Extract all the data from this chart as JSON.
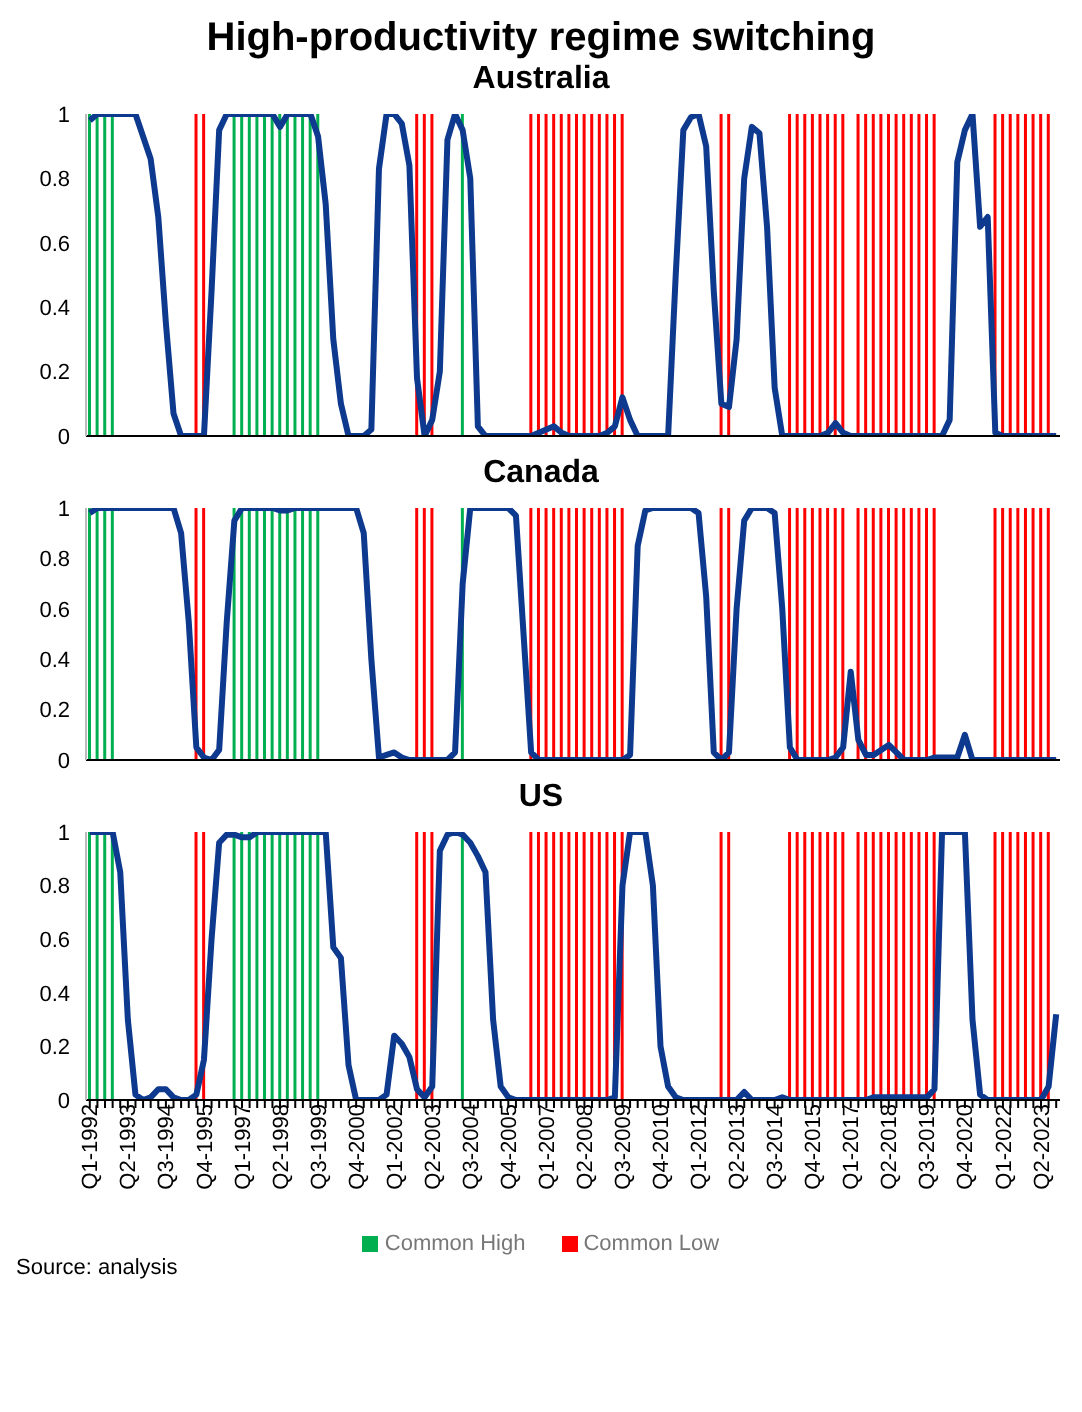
{
  "chart_data": [
    {
      "type": "line",
      "title": "High-productivity regime switching",
      "subtitle": "Australia",
      "ylim": [
        0,
        1
      ],
      "yticks": [
        0,
        0.2,
        0.4,
        0.6,
        0.8,
        1
      ],
      "tick_labels": "y",
      "categories": [
        null,
        null,
        null,
        null,
        null,
        null,
        null,
        null,
        null,
        null,
        null,
        null,
        null,
        null,
        null,
        null,
        null,
        null,
        null,
        null,
        null,
        null,
        null,
        null,
        null,
        null,
        null,
        null,
        null,
        null,
        null,
        null,
        null,
        null,
        null,
        null,
        null,
        null,
        null,
        null,
        null,
        null,
        null,
        null,
        null,
        null,
        null,
        null,
        null,
        null,
        null,
        null,
        null,
        null,
        null,
        null,
        null,
        null,
        null,
        null,
        null,
        null,
        null,
        null,
        null,
        null,
        null,
        null,
        null,
        null,
        null,
        null,
        null,
        null,
        null,
        null,
        null,
        null,
        null,
        null,
        null,
        null,
        null,
        null,
        null,
        null,
        null,
        null,
        null,
        null,
        null,
        null,
        null,
        null,
        null,
        null,
        null,
        null,
        null,
        null,
        null,
        null,
        null,
        null,
        null,
        null,
        null,
        null,
        null,
        null,
        null,
        null,
        null,
        null,
        null,
        null,
        null,
        null,
        null,
        null,
        null,
        null,
        null,
        null,
        null,
        null,
        null,
        null
      ],
      "series": [
        {
          "type": "bar",
          "color": "#00b050",
          "values": [
            1,
            1,
            1,
            1,
            null,
            null,
            null,
            null,
            null,
            null,
            null,
            null,
            null,
            null,
            null,
            null,
            null,
            null,
            null,
            1,
            1,
            1,
            1,
            1,
            1,
            1,
            1,
            1,
            1,
            1,
            1,
            null,
            null,
            null,
            null,
            null,
            null,
            null,
            null,
            null,
            null,
            null,
            null,
            null,
            null,
            null,
            null,
            null,
            null,
            1,
            null,
            null,
            null,
            null,
            null,
            null,
            null,
            null,
            null,
            null,
            null,
            null,
            null,
            null,
            null,
            null,
            null,
            null,
            null,
            null,
            null,
            null,
            null,
            null,
            null,
            null,
            null,
            null,
            null,
            null,
            null,
            null,
            null,
            null,
            null,
            null,
            null,
            null,
            null,
            null,
            null,
            null,
            null,
            null,
            null,
            null,
            null,
            null,
            null,
            null,
            null,
            null,
            null,
            null,
            null,
            null,
            null,
            null,
            null,
            null,
            null,
            null,
            null,
            null,
            null,
            null,
            null,
            null,
            null,
            null,
            null,
            null,
            null,
            null,
            null,
            null,
            null,
            null
          ]
        },
        {
          "type": "bar",
          "color": "#ff0000",
          "values": [
            null,
            null,
            null,
            null,
            null,
            null,
            null,
            null,
            null,
            null,
            null,
            null,
            null,
            null,
            1,
            1,
            null,
            null,
            null,
            null,
            null,
            null,
            null,
            null,
            null,
            null,
            null,
            null,
            null,
            null,
            null,
            null,
            null,
            null,
            null,
            null,
            null,
            null,
            null,
            null,
            null,
            null,
            null,
            1,
            1,
            1,
            null,
            null,
            null,
            null,
            null,
            null,
            null,
            null,
            null,
            null,
            null,
            null,
            1,
            1,
            1,
            1,
            1,
            1,
            1,
            1,
            1,
            1,
            1,
            1,
            1,
            null,
            null,
            null,
            null,
            null,
            null,
            null,
            null,
            null,
            null,
            null,
            null,
            1,
            1,
            null,
            null,
            null,
            null,
            null,
            null,
            null,
            1,
            1,
            1,
            1,
            1,
            1,
            1,
            1,
            null,
            1,
            1,
            1,
            1,
            1,
            1,
            1,
            1,
            1,
            1,
            1,
            null,
            null,
            null,
            null,
            null,
            null,
            null,
            1,
            1,
            1,
            1,
            1,
            1,
            1,
            1,
            null
          ]
        },
        {
          "color": "#0d3a8e",
          "values": [
            0.98,
            1,
            1,
            1,
            1,
            1,
            1,
            0.93,
            0.86,
            0.68,
            0.35,
            0.07,
            0,
            0,
            0,
            0,
            0.45,
            0.95,
            1,
            1,
            1,
            1,
            1,
            1,
            1,
            0.96,
            1,
            1,
            1,
            1,
            0.93,
            0.72,
            0.3,
            0.1,
            0,
            0,
            0,
            0.02,
            0.83,
            1,
            1,
            0.97,
            0.84,
            0.18,
            0,
            0.05,
            0.2,
            0.92,
            1,
            0.95,
            0.8,
            0.03,
            0,
            0,
            0,
            0,
            0,
            0,
            0,
            0.01,
            0.02,
            0.03,
            0.01,
            0,
            0,
            0,
            0,
            0,
            0.01,
            0.03,
            0.12,
            0.05,
            0,
            0,
            0,
            0,
            0,
            0.5,
            0.95,
            0.99,
            1,
            0.9,
            0.45,
            0.1,
            0.09,
            0.3,
            0.8,
            0.96,
            0.94,
            0.65,
            0.15,
            0,
            0,
            0,
            0,
            0,
            0,
            0.01,
            0.04,
            0.01,
            0,
            0,
            0,
            0,
            0,
            0,
            0,
            0,
            0,
            0,
            0,
            0,
            0,
            0.05,
            0.85,
            0.95,
            1,
            0.65,
            0.68,
            0.01,
            0,
            0,
            0,
            0,
            0,
            0,
            0,
            0
          ]
        }
      ]
    },
    {
      "type": "line",
      "title": "Canada",
      "ylim": [
        0,
        1
      ],
      "yticks": [
        0,
        0.2,
        0.4,
        0.6,
        0.8,
        1
      ],
      "tick_labels": "y",
      "categories": [
        null,
        null,
        null,
        null,
        null,
        null,
        null,
        null,
        null,
        null,
        null,
        null,
        null,
        null,
        null,
        null,
        null,
        null,
        null,
        null,
        null,
        null,
        null,
        null,
        null,
        null,
        null,
        null,
        null,
        null,
        null,
        null,
        null,
        null,
        null,
        null,
        null,
        null,
        null,
        null,
        null,
        null,
        null,
        null,
        null,
        null,
        null,
        null,
        null,
        null,
        null,
        null,
        null,
        null,
        null,
        null,
        null,
        null,
        null,
        null,
        null,
        null,
        null,
        null,
        null,
        null,
        null,
        null,
        null,
        null,
        null,
        null,
        null,
        null,
        null,
        null,
        null,
        null,
        null,
        null,
        null,
        null,
        null,
        null,
        null,
        null,
        null,
        null,
        null,
        null,
        null,
        null,
        null,
        null,
        null,
        null,
        null,
        null,
        null,
        null,
        null,
        null,
        null,
        null,
        null,
        null,
        null,
        null,
        null,
        null,
        null,
        null,
        null,
        null,
        null,
        null,
        null,
        null,
        null,
        null,
        null,
        null,
        null,
        null,
        null,
        null,
        null,
        null
      ],
      "series": [
        {
          "type": "bar",
          "color": "#00b050",
          "values": [
            1,
            1,
            1,
            1,
            null,
            null,
            null,
            null,
            null,
            null,
            null,
            null,
            null,
            null,
            null,
            null,
            null,
            null,
            null,
            1,
            1,
            1,
            1,
            1,
            1,
            1,
            1,
            1,
            1,
            1,
            1,
            null,
            null,
            null,
            null,
            null,
            null,
            null,
            null,
            null,
            null,
            null,
            null,
            null,
            null,
            null,
            null,
            null,
            null,
            1,
            null,
            null,
            null,
            null,
            null,
            null,
            null,
            null,
            null,
            null,
            null,
            null,
            null,
            null,
            null,
            null,
            null,
            null,
            null,
            null,
            null,
            null,
            null,
            null,
            null,
            null,
            null,
            null,
            null,
            null,
            null,
            null,
            null,
            null,
            null,
            null,
            null,
            null,
            null,
            null,
            null,
            null,
            null,
            null,
            null,
            null,
            null,
            null,
            null,
            null,
            null,
            null,
            null,
            null,
            null,
            null,
            null,
            null,
            null,
            null,
            null,
            null,
            null,
            null,
            null,
            null,
            null,
            null,
            null,
            null,
            null,
            null,
            null,
            null,
            null,
            null,
            null,
            null
          ]
        },
        {
          "type": "bar",
          "color": "#ff0000",
          "values": [
            null,
            null,
            null,
            null,
            null,
            null,
            null,
            null,
            null,
            null,
            null,
            null,
            null,
            null,
            1,
            1,
            null,
            null,
            null,
            null,
            null,
            null,
            null,
            null,
            null,
            null,
            null,
            null,
            null,
            null,
            null,
            null,
            null,
            null,
            null,
            null,
            null,
            null,
            null,
            null,
            null,
            null,
            null,
            1,
            1,
            1,
            null,
            null,
            null,
            null,
            null,
            null,
            null,
            null,
            null,
            null,
            null,
            null,
            1,
            1,
            1,
            1,
            1,
            1,
            1,
            1,
            1,
            1,
            1,
            1,
            1,
            null,
            null,
            null,
            null,
            null,
            null,
            null,
            null,
            null,
            null,
            null,
            null,
            1,
            1,
            null,
            null,
            null,
            null,
            null,
            null,
            null,
            1,
            1,
            1,
            1,
            1,
            1,
            1,
            1,
            null,
            1,
            1,
            1,
            1,
            1,
            1,
            1,
            1,
            1,
            1,
            1,
            null,
            null,
            null,
            null,
            null,
            null,
            null,
            1,
            1,
            1,
            1,
            1,
            1,
            1,
            1,
            null
          ]
        },
        {
          "color": "#0d3a8e",
          "values": [
            0.98,
            1,
            1,
            1,
            1,
            1,
            1,
            1,
            1,
            1,
            1,
            1,
            0.9,
            0.55,
            0.05,
            0.01,
            0,
            0.04,
            0.55,
            0.95,
            1,
            1,
            1,
            1,
            1,
            0.99,
            0.99,
            1,
            1,
            1,
            1,
            1,
            1,
            1,
            1,
            1,
            0.9,
            0.4,
            0.01,
            0.02,
            0.03,
            0.01,
            0,
            0,
            0,
            0,
            0,
            0,
            0.03,
            0.7,
            1,
            1,
            1,
            1,
            1,
            1,
            0.97,
            0.5,
            0.03,
            0,
            0,
            0,
            0,
            0,
            0,
            0,
            0,
            0,
            0,
            0,
            0,
            0.02,
            0.85,
            0.99,
            1,
            1,
            1,
            1,
            1,
            1,
            0.98,
            0.65,
            0.03,
            0,
            0.03,
            0.6,
            0.95,
            1,
            1,
            1,
            0.98,
            0.6,
            0.05,
            0,
            0,
            0,
            0,
            0,
            0.01,
            0.05,
            0.35,
            0.08,
            0.02,
            0.02,
            0.04,
            0.06,
            0.03,
            0,
            0,
            0,
            0,
            0.01,
            0.01,
            0.01,
            0.01,
            0.1,
            0,
            0,
            0,
            0,
            0,
            0,
            0,
            0,
            0,
            0,
            0,
            0
          ]
        }
      ]
    },
    {
      "type": "line",
      "title": "US",
      "ylim": [
        0,
        1
      ],
      "yticks": [
        0,
        0.2,
        0.4,
        0.6,
        0.8,
        1
      ],
      "legend": "bottom",
      "annotations": [
        "Source: analysis"
      ],
      "categories": [
        "Q1-1992",
        null,
        null,
        null,
        null,
        "Q2-1993",
        null,
        null,
        null,
        null,
        "Q3-1994",
        null,
        null,
        null,
        null,
        "Q4-1995",
        null,
        null,
        null,
        null,
        "Q1-1997",
        null,
        null,
        null,
        null,
        "Q2-1998",
        null,
        null,
        null,
        null,
        "Q3-1999",
        null,
        null,
        null,
        null,
        "Q4-2000",
        null,
        null,
        null,
        null,
        "Q1-2002",
        null,
        null,
        null,
        null,
        "Q2-2003",
        null,
        null,
        null,
        null,
        "Q3-2004",
        null,
        null,
        null,
        null,
        "Q4-2005",
        null,
        null,
        null,
        null,
        "Q1-2007",
        null,
        null,
        null,
        null,
        "Q2-2008",
        null,
        null,
        null,
        null,
        "Q3-2009",
        null,
        null,
        null,
        null,
        "Q4-2010",
        null,
        null,
        null,
        null,
        "Q1-2012",
        null,
        null,
        null,
        null,
        "Q2-2013",
        null,
        null,
        null,
        null,
        "Q3-2014",
        null,
        null,
        null,
        null,
        "Q4-2015",
        null,
        null,
        null,
        null,
        "Q1-2017",
        null,
        null,
        null,
        null,
        "Q2-2018",
        null,
        null,
        null,
        null,
        "Q3-2019",
        null,
        null,
        null,
        null,
        "Q4-2020",
        null,
        null,
        null,
        null,
        "Q1-2022",
        null,
        null,
        null,
        null,
        "Q2-2023",
        null,
        null
      ],
      "series": [
        {
          "type": "bar",
          "name": "Common High",
          "color": "#00b050",
          "values": [
            1,
            1,
            1,
            1,
            null,
            null,
            null,
            null,
            null,
            null,
            null,
            null,
            null,
            null,
            null,
            null,
            null,
            null,
            null,
            1,
            1,
            1,
            1,
            1,
            1,
            1,
            1,
            1,
            1,
            1,
            1,
            null,
            null,
            null,
            null,
            null,
            null,
            null,
            null,
            null,
            null,
            null,
            null,
            null,
            null,
            null,
            null,
            null,
            null,
            1,
            null,
            null,
            null,
            null,
            null,
            null,
            null,
            null,
            null,
            null,
            null,
            null,
            null,
            null,
            null,
            null,
            null,
            null,
            null,
            null,
            null,
            null,
            null,
            null,
            null,
            null,
            null,
            null,
            null,
            null,
            null,
            null,
            null,
            null,
            null,
            null,
            null,
            null,
            null,
            null,
            null,
            null,
            null,
            null,
            null,
            null,
            null,
            null,
            null,
            null,
            null,
            null,
            null,
            null,
            null,
            null,
            null,
            null,
            null,
            null,
            null,
            null,
            null,
            null,
            null,
            null,
            null,
            null,
            null,
            null,
            null,
            null,
            null,
            null,
            null,
            null,
            null,
            null
          ]
        },
        {
          "type": "bar",
          "name": "Common Low",
          "color": "#ff0000",
          "values": [
            null,
            null,
            null,
            null,
            null,
            null,
            null,
            null,
            null,
            null,
            null,
            null,
            null,
            null,
            1,
            1,
            null,
            null,
            null,
            null,
            null,
            null,
            null,
            null,
            null,
            null,
            null,
            null,
            null,
            null,
            null,
            null,
            null,
            null,
            null,
            null,
            null,
            null,
            null,
            null,
            null,
            null,
            null,
            1,
            1,
            1,
            null,
            null,
            null,
            null,
            null,
            null,
            null,
            null,
            null,
            null,
            null,
            null,
            1,
            1,
            1,
            1,
            1,
            1,
            1,
            1,
            1,
            1,
            1,
            1,
            1,
            null,
            null,
            null,
            null,
            null,
            null,
            null,
            null,
            null,
            null,
            null,
            null,
            1,
            1,
            null,
            null,
            null,
            null,
            null,
            null,
            null,
            1,
            1,
            1,
            1,
            1,
            1,
            1,
            1,
            null,
            1,
            1,
            1,
            1,
            1,
            1,
            1,
            1,
            1,
            1,
            1,
            null,
            null,
            null,
            null,
            null,
            null,
            null,
            1,
            1,
            1,
            1,
            1,
            1,
            1,
            1,
            null
          ]
        },
        {
          "color": "#0d3a8e",
          "values": [
            1,
            1,
            1,
            1,
            0.85,
            0.3,
            0.02,
            0,
            0.01,
            0.04,
            0.04,
            0.01,
            0,
            0,
            0.02,
            0.15,
            0.6,
            0.96,
            0.99,
            0.99,
            0.98,
            0.98,
            1,
            1,
            1,
            1,
            1,
            1,
            1,
            1,
            1,
            1,
            0.57,
            0.53,
            0.13,
            0,
            0,
            0,
            0,
            0.02,
            0.24,
            0.21,
            0.16,
            0.04,
            0.01,
            0.05,
            0.93,
            0.99,
            1,
            0.99,
            0.96,
            0.91,
            0.85,
            0.3,
            0.05,
            0.01,
            0,
            0,
            0,
            0,
            0,
            0,
            0,
            0,
            0,
            0,
            0,
            0,
            0,
            0.01,
            0.8,
            1,
            1,
            1,
            0.8,
            0.2,
            0.05,
            0.01,
            0,
            0,
            0,
            0,
            0,
            0,
            0,
            0,
            0.03,
            0,
            0,
            0,
            0,
            0.01,
            0,
            0,
            0,
            0,
            0,
            0,
            0,
            0,
            0,
            0,
            0,
            0.01,
            0.01,
            0.01,
            0.01,
            0.01,
            0.01,
            0.01,
            0.01,
            0.04,
            1,
            1,
            1,
            1,
            0.3,
            0.02,
            0,
            0,
            0,
            0,
            0,
            0,
            0,
            0,
            0.05,
            0.32
          ]
        }
      ]
    }
  ]
}
